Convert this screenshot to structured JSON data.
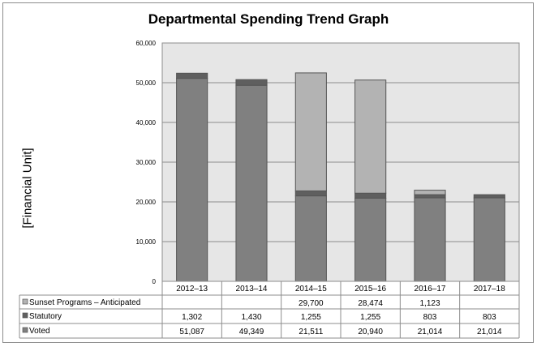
{
  "chart_data": {
    "type": "bar",
    "stacked": true,
    "title": "Departmental Spending Trend Graph",
    "xlabel": "",
    "ylabel": "[Financial Unit]",
    "ylim": [
      0,
      60000
    ],
    "yticks": [
      0,
      10000,
      20000,
      30000,
      40000,
      50000,
      60000
    ],
    "ytick_labels": [
      "0",
      "10,000",
      "20,000",
      "30,000",
      "40,000",
      "50,000",
      "60,000"
    ],
    "grid": true,
    "legend": "data-table-below",
    "categories": [
      "2012–13",
      "2013–14",
      "2014–15",
      "2015–16",
      "2016–17",
      "2017–18"
    ],
    "series": [
      {
        "name": "Voted",
        "color": "#808080",
        "values": [
          51087,
          49349,
          21511,
          20940,
          21014,
          21014
        ],
        "labels": [
          "51,087",
          "49,349",
          "21,511",
          "20,940",
          "21,014",
          "21,014"
        ]
      },
      {
        "name": "Statutory",
        "color": "#5f5f5f",
        "values": [
          1302,
          1430,
          1255,
          1255,
          803,
          803
        ],
        "labels": [
          "1,302",
          "1,430",
          "1,255",
          "1,255",
          "803",
          "803"
        ]
      },
      {
        "name": "Sunset Programs – Anticipated",
        "color": "#b3b3b3",
        "values": [
          null,
          null,
          29700,
          28474,
          1123,
          null
        ],
        "labels": [
          "",
          "",
          "29,700",
          "28,474",
          "1,123",
          ""
        ]
      }
    ]
  }
}
